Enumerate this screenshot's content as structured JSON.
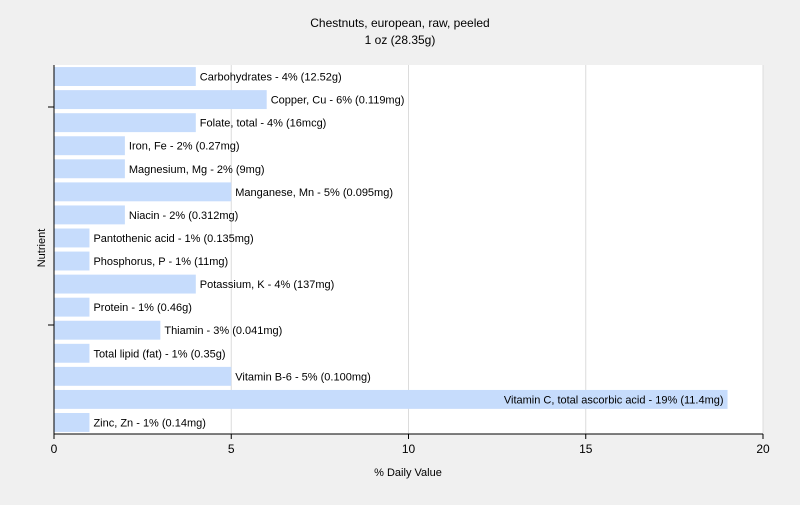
{
  "chart_data": {
    "type": "bar",
    "orientation": "horizontal",
    "title": "Chestnuts, european, raw, peeled",
    "subtitle": "1 oz (28.35g)",
    "xlabel": "% Daily Value",
    "ylabel": "Nutrient",
    "xlim": [
      0,
      20
    ],
    "xticks": [
      0,
      5,
      10,
      15,
      20
    ],
    "grid": true,
    "bar_color": "#c6dcfc",
    "categories": [
      "Carbohydrates",
      "Copper, Cu",
      "Folate, total",
      "Iron, Fe",
      "Magnesium, Mg",
      "Manganese, Mn",
      "Niacin",
      "Pantothenic acid",
      "Phosphorus, P",
      "Potassium, K",
      "Protein",
      "Thiamin",
      "Total lipid (fat)",
      "Vitamin B-6",
      "Vitamin C, total ascorbic acid",
      "Zinc, Zn"
    ],
    "values": [
      4,
      6,
      4,
      2,
      2,
      5,
      2,
      1,
      1,
      4,
      1,
      3,
      1,
      5,
      19,
      1
    ],
    "labels": [
      "Carbohydrates - 4% (12.52g)",
      "Copper, Cu - 6% (0.119mg)",
      "Folate, total - 4% (16mcg)",
      "Iron, Fe - 2% (0.27mg)",
      "Magnesium, Mg - 2% (9mg)",
      "Manganese, Mn - 5% (0.095mg)",
      "Niacin - 2% (0.312mg)",
      "Pantothenic acid - 1% (0.135mg)",
      "Phosphorus, P - 1% (11mg)",
      "Potassium, K - 4% (137mg)",
      "Protein - 1% (0.46g)",
      "Thiamin - 3% (0.041mg)",
      "Total lipid (fat) - 1% (0.35g)",
      "Vitamin B-6 - 5% (0.100mg)",
      "Vitamin C, total ascorbic acid - 19% (11.4mg)",
      "Zinc, Zn - 1% (0.14mg)"
    ]
  }
}
